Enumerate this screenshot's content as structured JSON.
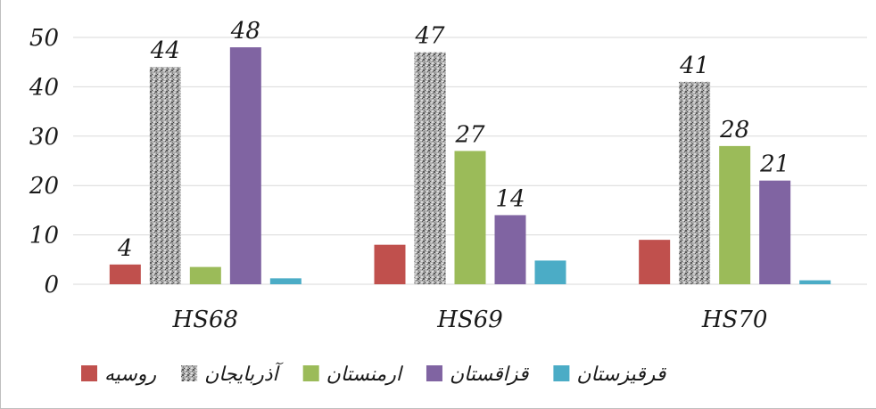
{
  "chart_data": {
    "type": "bar",
    "categories": [
      "HS68",
      "HS69",
      "HS70"
    ],
    "series": [
      {
        "name": "روسیه",
        "color": "#c0504d",
        "pattern": false,
        "values": [
          4,
          8,
          9
        ],
        "labels": [
          "4",
          null,
          null
        ]
      },
      {
        "name": "آذربایجان",
        "color": "#a6a6a6",
        "pattern": true,
        "values": [
          44,
          47,
          41
        ],
        "labels": [
          "44",
          "47",
          "41"
        ]
      },
      {
        "name": "ارمنستان",
        "color": "#9bbb59",
        "pattern": false,
        "values": [
          3.5,
          27,
          28
        ],
        "labels": [
          null,
          "27",
          "28"
        ]
      },
      {
        "name": "قزاقستان",
        "color": "#8064a2",
        "pattern": false,
        "values": [
          48,
          14,
          21
        ],
        "labels": [
          "48",
          "14",
          "21"
        ]
      },
      {
        "name": "قرقیزستان",
        "color": "#4bacc6",
        "pattern": false,
        "values": [
          1.2,
          4.8,
          0.8
        ],
        "labels": [
          null,
          null,
          null
        ]
      }
    ],
    "yticks": [
      "0",
      "10",
      "20",
      "30",
      "40",
      "50"
    ],
    "ylim": [
      0,
      50
    ],
    "grid": true,
    "legend_position": "bottom",
    "title": "",
    "xlabel": "",
    "ylabel": ""
  }
}
